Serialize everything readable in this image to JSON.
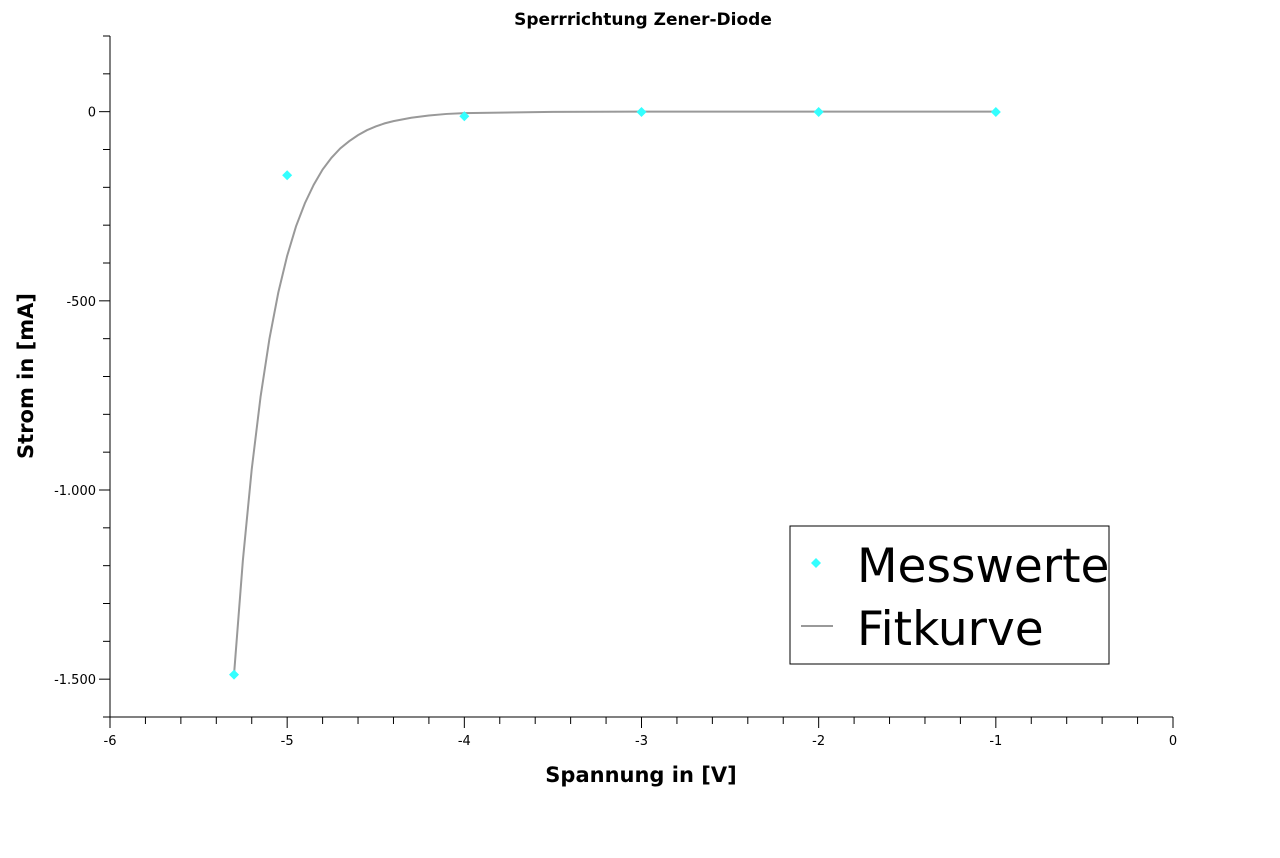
{
  "chart_data": {
    "type": "scatter",
    "title": "Sperrrichtung Zener-Diode",
    "xlabel": "Spannung in [V]",
    "ylabel": "Strom in [mA]",
    "xlim": [
      -6,
      0
    ],
    "ylim": [
      -1600,
      200
    ],
    "x_ticks": [
      {
        "value": -6,
        "label": "-6"
      },
      {
        "value": -5,
        "label": "-5"
      },
      {
        "value": -4,
        "label": "-4"
      },
      {
        "value": -3,
        "label": "-3"
      },
      {
        "value": -2,
        "label": "-2"
      },
      {
        "value": -1,
        "label": "-1"
      },
      {
        "value": 0,
        "label": "0"
      }
    ],
    "y_ticks": [
      {
        "value": 0,
        "label": "0"
      },
      {
        "value": -500,
        "label": "-500"
      },
      {
        "value": -1000,
        "label": "-1.000"
      },
      {
        "value": -1500,
        "label": "-1.500"
      }
    ],
    "grid": false,
    "legend_position": "bottom-right",
    "series": [
      {
        "name": "Messwerte",
        "kind": "markers",
        "marker": "diamond",
        "color": "#33ffff",
        "x": [
          -5.3,
          -5.0,
          -4.0,
          -3.0,
          -2.0,
          -1.0
        ],
        "y": [
          -1488,
          -168,
          -12,
          -1,
          -1,
          -1
        ]
      },
      {
        "name": "Fitkurve",
        "kind": "line",
        "color": "#999999",
        "x": [
          -5.3,
          -5.25,
          -5.2,
          -5.15,
          -5.1,
          -5.05,
          -5.0,
          -4.95,
          -4.9,
          -4.85,
          -4.8,
          -4.75,
          -4.7,
          -4.65,
          -4.6,
          -4.55,
          -4.5,
          -4.45,
          -4.4,
          -4.3,
          -4.2,
          -4.1,
          -4.0,
          -3.5,
          -3.0,
          -2.0,
          -1.0
        ],
        "y": [
          -1488,
          -1186,
          -945,
          -753,
          -600,
          -478,
          -381,
          -303,
          -242,
          -193,
          -153,
          -122,
          -97,
          -78,
          -62,
          -49,
          -39,
          -31,
          -25,
          -16,
          -10,
          -6,
          -4,
          -0.4,
          0,
          0,
          0
        ]
      }
    ]
  }
}
